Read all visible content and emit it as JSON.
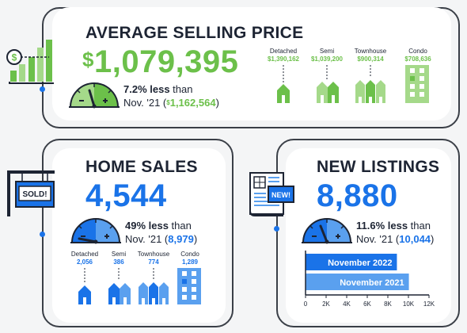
{
  "avg_price": {
    "title": "AVERAGE SELLING PRICE",
    "currency": "$",
    "value": "1,079,395",
    "pct": "7.2% less",
    "than": " than",
    "prev_label": "Nov. '21 (",
    "prev_currency": "$",
    "prev_value": "1,162,564",
    "prev_close": ")",
    "types": [
      {
        "name": "Detached",
        "value": "$1,390,162"
      },
      {
        "name": "Semi",
        "value": "$1,039,200"
      },
      {
        "name": "Townhouse",
        "value": "$900,314"
      },
      {
        "name": "Condo",
        "value": "$708,636"
      }
    ]
  },
  "home_sales": {
    "title": "HOME SALES",
    "value": "4,544",
    "pct": "49% less",
    "than": " than",
    "prev_label": "Nov. '21 (",
    "prev_value": "8,979",
    "prev_close": ")",
    "sign_text": "SOLD!",
    "types": [
      {
        "name": "Detached",
        "value": "2,056"
      },
      {
        "name": "Semi",
        "value": "386"
      },
      {
        "name": "Townhouse",
        "value": "774"
      },
      {
        "name": "Condo",
        "value": "1,289"
      }
    ]
  },
  "new_listings": {
    "title": "NEW LISTINGS",
    "value": "8,880",
    "pct": "11.6% less",
    "than": " than",
    "prev_label": "Nov. '21 (",
    "prev_value": "10,044",
    "prev_close": ")",
    "badge_text": "NEW!"
  },
  "colors": {
    "green": "#6cc04a",
    "light_green": "#a5d98a",
    "blue": "#1a73e8",
    "light_blue": "#5aa0ef",
    "dark": "#1d2433"
  },
  "icons": [
    "dollar-bar-chart-icon",
    "gauge-icon",
    "detached-house-icon",
    "semi-house-icon",
    "townhouse-icon",
    "condo-icon",
    "sold-sign-icon",
    "newspaper-icon"
  ],
  "chart_data": {
    "type": "bar",
    "orientation": "horizontal",
    "categories": [
      "November 2022",
      "November 2021"
    ],
    "values": [
      8880,
      10044
    ],
    "xlim": [
      0,
      12000
    ],
    "xticks": [
      0,
      2000,
      4000,
      6000,
      8000,
      10000,
      12000
    ],
    "xtick_labels": [
      "0",
      "2K",
      "4K",
      "6K",
      "8K",
      "10K",
      "12K"
    ],
    "colors": [
      "#1a73e8",
      "#5aa0ef"
    ]
  }
}
